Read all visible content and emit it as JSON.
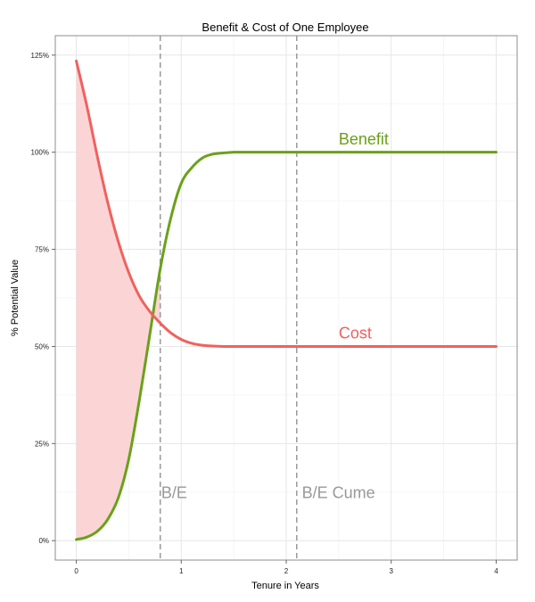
{
  "chart_data": {
    "type": "line",
    "title": "Benefit & Cost of One Employee",
    "xlabel": "Tenure in Years",
    "ylabel": "% Potential Value",
    "xlim": [
      -0.2,
      4.2
    ],
    "ylim": [
      -0.05,
      1.3
    ],
    "x_ticks": [
      0,
      1,
      2,
      3,
      4
    ],
    "x_tick_labels": [
      "0",
      "1",
      "2",
      "3",
      "4"
    ],
    "y_ticks": [
      0,
      0.25,
      0.5,
      0.75,
      1.0,
      1.25
    ],
    "y_tick_labels": [
      "0%",
      "25%",
      "50%",
      "75%",
      "100%",
      "125%"
    ],
    "grid": true,
    "series": [
      {
        "name": "Benefit",
        "color": "#6aa11a",
        "x": [
          0,
          0.1,
          0.2,
          0.3,
          0.4,
          0.5,
          0.6,
          0.7,
          0.8,
          0.9,
          1.0,
          1.1,
          1.2,
          1.3,
          1.4,
          1.5,
          1.6,
          1.8,
          2.0,
          2.5,
          3.0,
          3.5,
          4.0
        ],
        "values": [
          0.003,
          0.009,
          0.024,
          0.055,
          0.11,
          0.21,
          0.36,
          0.53,
          0.7,
          0.83,
          0.92,
          0.96,
          0.985,
          0.995,
          0.998,
          1.0,
          1.0,
          1.0,
          1.0,
          1.0,
          1.0,
          1.0,
          1.0
        ]
      },
      {
        "name": "Cost",
        "color": "#f0615e",
        "x": [
          0,
          0.1,
          0.2,
          0.3,
          0.4,
          0.5,
          0.6,
          0.7,
          0.8,
          0.9,
          1.0,
          1.1,
          1.2,
          1.3,
          1.4,
          1.5,
          1.6,
          1.8,
          2.0,
          2.5,
          3.0,
          3.5,
          4.0
        ],
        "values": [
          1.235,
          1.12,
          0.99,
          0.87,
          0.77,
          0.69,
          0.63,
          0.59,
          0.56,
          0.535,
          0.518,
          0.508,
          0.503,
          0.501,
          0.5,
          0.5,
          0.5,
          0.5,
          0.5,
          0.5,
          0.5,
          0.5,
          0.5
        ]
      }
    ],
    "shaded_area": {
      "between": [
        "Cost",
        "Benefit"
      ],
      "from_x": 0,
      "to_x": 0.8,
      "color": "#fbd5d5"
    },
    "annotations": [
      {
        "text": "Benefit",
        "x": 2.5,
        "y": 1.02,
        "color": "#6aa11a"
      },
      {
        "text": "Cost",
        "x": 2.5,
        "y": 0.52,
        "color": "#f0615e"
      },
      {
        "text": "B/E",
        "x": 0.81,
        "y": 0.11,
        "color": "#999999"
      },
      {
        "text": "B/E Cume",
        "x": 2.15,
        "y": 0.11,
        "color": "#999999"
      }
    ],
    "vlines": [
      {
        "x": 0.8,
        "color": "#999999",
        "style": "dashed"
      },
      {
        "x": 2.1,
        "color": "#999999",
        "style": "dashed"
      }
    ]
  }
}
